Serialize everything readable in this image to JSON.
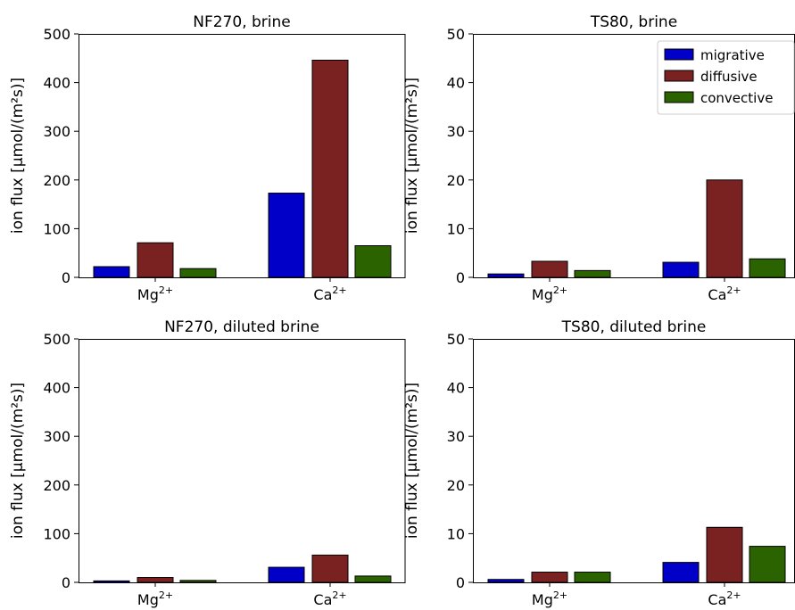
{
  "chart_data": [
    {
      "type": "bar",
      "title": "NF270, brine",
      "ylabel": "ion flux [μmol/(m²s)]",
      "categories": [
        {
          "base": "Mg",
          "sup": "2+"
        },
        {
          "base": "Ca",
          "sup": "2+"
        }
      ],
      "ylim": [
        0,
        500
      ],
      "yticks": [
        0,
        100,
        200,
        300,
        400,
        500
      ],
      "series": [
        {
          "name": "migrative",
          "values": [
            22,
            173
          ]
        },
        {
          "name": "diffusive",
          "values": [
            71,
            446
          ]
        },
        {
          "name": "convective",
          "values": [
            18,
            65
          ]
        }
      ],
      "legend": false
    },
    {
      "type": "bar",
      "title": "TS80, brine",
      "ylabel": "ion flux [μmol/(m²s)]",
      "categories": [
        {
          "base": "Mg",
          "sup": "2+"
        },
        {
          "base": "Ca",
          "sup": "2+"
        }
      ],
      "ylim": [
        0,
        50
      ],
      "yticks": [
        0,
        10,
        20,
        30,
        40,
        50
      ],
      "series": [
        {
          "name": "migrative",
          "values": [
            0.7,
            3.1
          ]
        },
        {
          "name": "diffusive",
          "values": [
            3.3,
            20.0
          ]
        },
        {
          "name": "convective",
          "values": [
            1.4,
            3.8
          ]
        }
      ],
      "legend": true,
      "legend_position": "upper-right"
    },
    {
      "type": "bar",
      "title": "NF270, diluted brine",
      "ylabel": "ion flux [μmol/(m²s)]",
      "categories": [
        {
          "base": "Mg",
          "sup": "2+"
        },
        {
          "base": "Ca",
          "sup": "2+"
        }
      ],
      "ylim": [
        0,
        500
      ],
      "yticks": [
        0,
        100,
        200,
        300,
        400,
        500
      ],
      "series": [
        {
          "name": "migrative",
          "values": [
            3,
            31
          ]
        },
        {
          "name": "diffusive",
          "values": [
            10,
            56
          ]
        },
        {
          "name": "convective",
          "values": [
            4,
            13
          ]
        }
      ],
      "legend": false
    },
    {
      "type": "bar",
      "title": "TS80, diluted brine",
      "ylabel": "ion flux [μmol/(m²s)]",
      "categories": [
        {
          "base": "Mg",
          "sup": "2+"
        },
        {
          "base": "Ca",
          "sup": "2+"
        }
      ],
      "ylim": [
        0,
        50
      ],
      "yticks": [
        0,
        10,
        20,
        30,
        40,
        50
      ],
      "series": [
        {
          "name": "migrative",
          "values": [
            0.6,
            4.1
          ]
        },
        {
          "name": "diffusive",
          "values": [
            2.1,
            11.3
          ]
        },
        {
          "name": "convective",
          "values": [
            2.1,
            7.4
          ]
        }
      ],
      "legend": false
    }
  ],
  "colors": {
    "migrative": "#0000c8",
    "diffusive": "#7a2222",
    "convective": "#2a6300",
    "edge": "#000000"
  }
}
